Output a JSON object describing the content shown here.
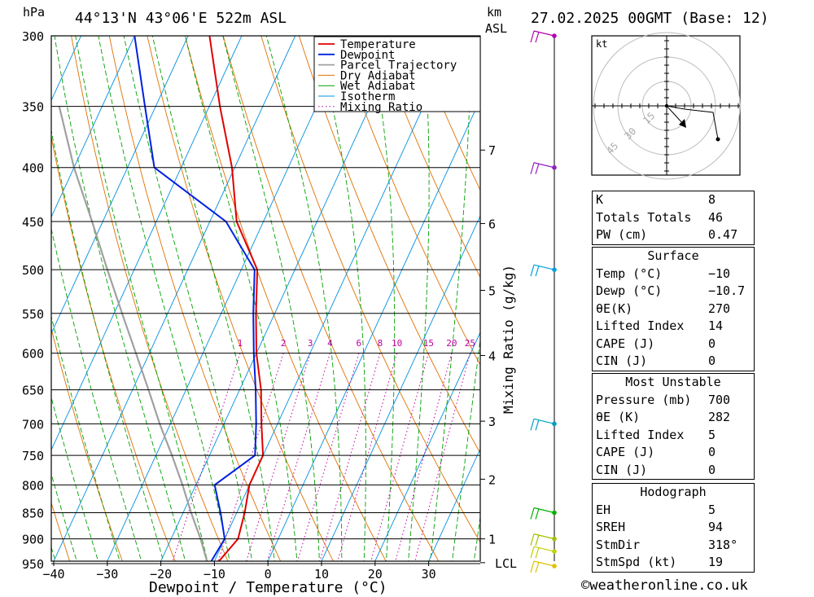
{
  "header": {
    "location": "44°13'N 43°06'E 522m ASL",
    "datetime": "27.02.2025 00GMT (Base: 12)",
    "pressure_unit": "hPa",
    "km_unit": "km",
    "asl_label": "ASL"
  },
  "chart_data": {
    "type": "skew-t",
    "xlabel": "Dewpoint / Temperature (°C)",
    "ylabel_right": "Mixing Ratio (g/kg)",
    "x_ticks": [
      -40,
      -30,
      -20,
      -10,
      0,
      10,
      20,
      30
    ],
    "pressure_levels": [
      300,
      350,
      400,
      450,
      500,
      550,
      600,
      650,
      700,
      750,
      800,
      850,
      900,
      950
    ],
    "xlim_at_base": [
      -40,
      38
    ],
    "legend": [
      "Temperature",
      "Dewpoint",
      "Parcel Trajectory",
      "Dry Adiabat",
      "Wet Adiabat",
      "Isotherm",
      "Mixing Ratio"
    ],
    "legend_position": "top-center",
    "km_levels": [
      {
        "km": "7",
        "p": 385
      },
      {
        "km": "6",
        "p": 452
      },
      {
        "km": "5",
        "p": 523
      },
      {
        "km": "4",
        "p": 603
      },
      {
        "km": "3",
        "p": 696
      },
      {
        "km": "2",
        "p": 790
      },
      {
        "km": "1",
        "p": 900
      },
      {
        "km": "LCL",
        "p": 948
      }
    ],
    "mixing_ratio_labels": [
      "1",
      "2",
      "3",
      "4",
      "6",
      "8",
      "10",
      "15",
      "20",
      "25"
    ],
    "mixing_ratio_values": [
      1,
      2,
      3,
      4,
      6,
      8,
      10,
      15,
      20,
      25
    ],
    "temperature": [
      {
        "p": 955,
        "t": -9.5
      },
      {
        "p": 900,
        "t": -7.5
      },
      {
        "p": 850,
        "t": -8.5
      },
      {
        "p": 800,
        "t": -10
      },
      {
        "p": 750,
        "t": -10
      },
      {
        "p": 700,
        "t": -13
      },
      {
        "p": 650,
        "t": -16
      },
      {
        "p": 600,
        "t": -20
      },
      {
        "p": 550,
        "t": -23.5
      },
      {
        "p": 500,
        "t": -27
      },
      {
        "p": 450,
        "t": -35
      },
      {
        "p": 400,
        "t": -40.5
      },
      {
        "p": 350,
        "t": -48
      },
      {
        "p": 300,
        "t": -56
      }
    ],
    "dewpoint": [
      {
        "p": 955,
        "t": -10.7
      },
      {
        "p": 900,
        "t": -10
      },
      {
        "p": 850,
        "t": -13
      },
      {
        "p": 800,
        "t": -16.5
      },
      {
        "p": 750,
        "t": -11.5
      },
      {
        "p": 700,
        "t": -14
      },
      {
        "p": 650,
        "t": -17
      },
      {
        "p": 600,
        "t": -20.5
      },
      {
        "p": 550,
        "t": -24
      },
      {
        "p": 500,
        "t": -27.5
      },
      {
        "p": 450,
        "t": -37
      },
      {
        "p": 400,
        "t": -55
      },
      {
        "p": 350,
        "t": -62
      },
      {
        "p": 300,
        "t": -70
      }
    ],
    "parcel": [
      {
        "p": 955,
        "t": -10.7
      },
      {
        "p": 900,
        "t": -14.5
      },
      {
        "p": 850,
        "t": -18.5
      },
      {
        "p": 800,
        "t": -22.5
      },
      {
        "p": 750,
        "t": -27
      },
      {
        "p": 700,
        "t": -32
      },
      {
        "p": 650,
        "t": -37
      },
      {
        "p": 600,
        "t": -42.5
      },
      {
        "p": 550,
        "t": -48.5
      },
      {
        "p": 500,
        "t": -55
      },
      {
        "p": 450,
        "t": -62
      },
      {
        "p": 400,
        "t": -70
      },
      {
        "p": 350,
        "t": -78
      }
    ],
    "wind_barbs": [
      {
        "p": 300,
        "color": "#b000b0"
      },
      {
        "p": 400,
        "color": "#9020c0"
      },
      {
        "p": 500,
        "color": "#00a0e0"
      },
      {
        "p": 700,
        "color": "#00a0c0"
      },
      {
        "p": 850,
        "color": "#00b000"
      },
      {
        "p": 900,
        "color": "#a0c000"
      },
      {
        "p": 925,
        "color": "#c0d000"
      },
      {
        "p": 955,
        "color": "#e0c000"
      }
    ],
    "colors": {
      "temperature": "#e00000",
      "dewpoint": "#0020e0",
      "parcel": "#a0a0a0",
      "dry_adiabat": "#e07000",
      "wet_adiabat": "#00a000",
      "isotherm": "#0090e0",
      "mixing_ratio": "#c000a0"
    }
  },
  "hodograph": {
    "unit": "kt",
    "ring_labels": [
      "15",
      "30",
      "45"
    ]
  },
  "indices": {
    "top": [
      {
        "label": "K",
        "value": "8"
      },
      {
        "label": "Totals Totals",
        "value": "46"
      },
      {
        "label": "PW (cm)",
        "value": "0.47"
      }
    ],
    "surface": {
      "title": "Surface",
      "rows": [
        {
          "label": "Temp (°C)",
          "value": "−10"
        },
        {
          "label": "Dewp (°C)",
          "value": "−10.7"
        },
        {
          "label": "θE(K)",
          "value": "270"
        },
        {
          "label": "Lifted Index",
          "value": "14"
        },
        {
          "label": "CAPE (J)",
          "value": "0"
        },
        {
          "label": "CIN (J)",
          "value": "0"
        }
      ]
    },
    "most_unstable": {
      "title": "Most Unstable",
      "rows": [
        {
          "label": "Pressure (mb)",
          "value": "700"
        },
        {
          "label": "θE (K)",
          "value": "282"
        },
        {
          "label": "Lifted Index",
          "value": "5"
        },
        {
          "label": "CAPE (J)",
          "value": "0"
        },
        {
          "label": "CIN (J)",
          "value": "0"
        }
      ]
    },
    "hodograph": {
      "title": "Hodograph",
      "rows": [
        {
          "label": "EH",
          "value": "5"
        },
        {
          "label": "SREH",
          "value": "94"
        },
        {
          "label": "StmDir",
          "value": "318°"
        },
        {
          "label": "StmSpd (kt)",
          "value": "19"
        }
      ]
    }
  },
  "credit": "©weatheronline.co.uk"
}
